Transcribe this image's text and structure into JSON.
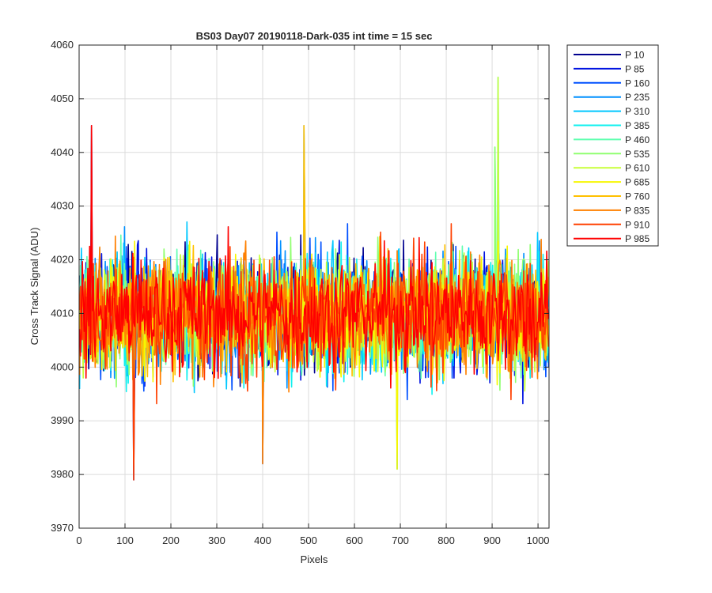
{
  "chart_data": {
    "type": "line",
    "title": "BS03 Day07 20190118-Dark-035 int time = 15 sec",
    "xlabel": "Pixels",
    "ylabel": "Cross Track Signal (ADU)",
    "xlim": [
      0,
      1024
    ],
    "ylim": [
      3970,
      4060
    ],
    "xticks": [
      0,
      100,
      200,
      300,
      400,
      500,
      600,
      700,
      800,
      900,
      1000
    ],
    "yticks": [
      3970,
      3980,
      3990,
      4000,
      4010,
      4020,
      4030,
      4040,
      4050,
      4060
    ],
    "grid": true,
    "legend_location": "outside-top-right",
    "baseline_mean": 4010,
    "noise_range": [
      3979,
      4054
    ],
    "series": [
      {
        "name": "P 10",
        "color": "#00008f"
      },
      {
        "name": "P 85",
        "color": "#0012e0"
      },
      {
        "name": "P 160",
        "color": "#0050ff"
      },
      {
        "name": "P 235",
        "color": "#0090ff"
      },
      {
        "name": "P 310",
        "color": "#00c8ff"
      },
      {
        "name": "P 385",
        "color": "#10f0ef"
      },
      {
        "name": "P 460",
        "color": "#60ffb0"
      },
      {
        "name": "P 535",
        "color": "#90ff70"
      },
      {
        "name": "P 610",
        "color": "#c8ff38"
      },
      {
        "name": "P 685",
        "color": "#f7f700"
      },
      {
        "name": "P 760",
        "color": "#ffc000"
      },
      {
        "name": "P 835",
        "color": "#ff8000"
      },
      {
        "name": "P 910",
        "color": "#ff4000"
      },
      {
        "name": "P 985",
        "color": "#ff0000"
      }
    ],
    "notable_values": [
      {
        "x": 27,
        "y": 4045
      },
      {
        "x": 119,
        "y": 3979
      },
      {
        "x": 400,
        "y": 3982
      },
      {
        "x": 490,
        "y": 4045
      },
      {
        "x": 693,
        "y": 3981
      },
      {
        "x": 913,
        "y": 4054
      },
      {
        "x": 906,
        "y": 4041
      }
    ]
  }
}
